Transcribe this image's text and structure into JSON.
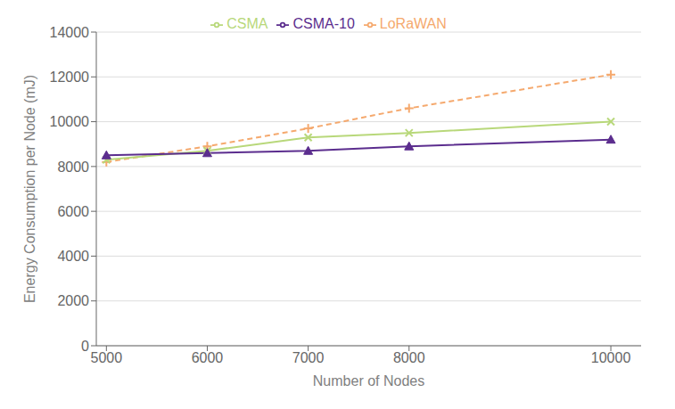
{
  "chart_data": {
    "type": "line",
    "x": [
      5000,
      6000,
      7000,
      8000,
      10000
    ],
    "series": [
      {
        "name": "LoRaWAN",
        "color": "#F5A96E",
        "values": [
          8200,
          8900,
          9700,
          10600,
          12100
        ],
        "marker": "plus",
        "line_style": "dashed"
      },
      {
        "name": "CSMA",
        "color": "#B8D87A",
        "values": [
          8300,
          8700,
          9300,
          9500,
          10000
        ],
        "marker": "x",
        "line_style": "solid"
      },
      {
        "name": "CSMA-10",
        "color": "#5B2D8E",
        "values": [
          8500,
          8600,
          8700,
          8900,
          9200
        ],
        "marker": "triangle",
        "line_style": "solid"
      }
    ],
    "xlabel": "Number of Nodes",
    "ylabel": "Energy Consumption per Node (mJ)",
    "xlim": [
      4900,
      10300
    ],
    "xticks": [
      5000,
      6000,
      7000,
      8000,
      10000
    ],
    "ylim": [
      0,
      14000
    ],
    "yticks": [
      0,
      2000,
      4000,
      6000,
      8000,
      10000,
      12000,
      14000
    ],
    "grid": "y",
    "legend": "top"
  }
}
